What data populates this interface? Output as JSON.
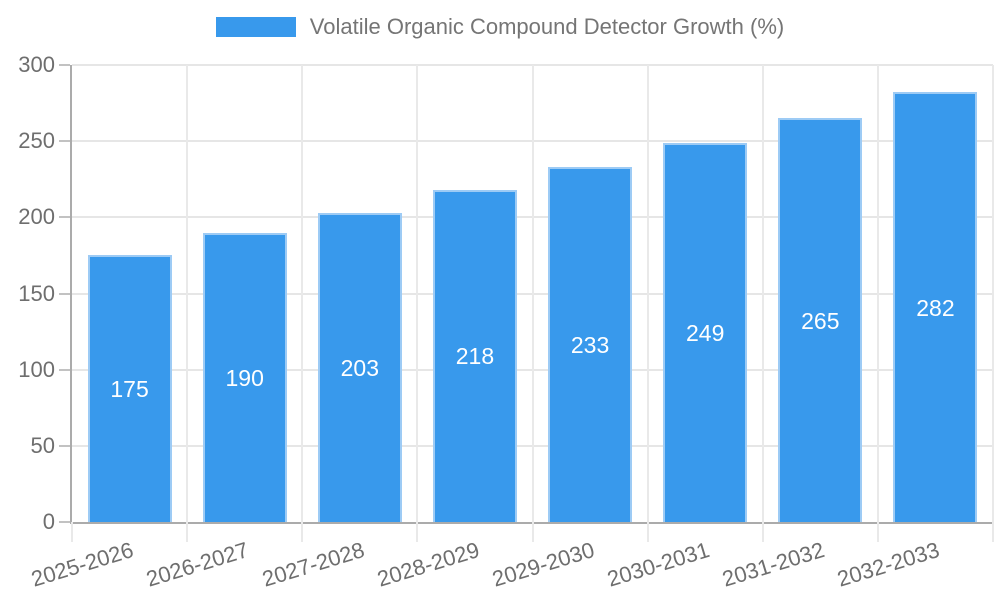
{
  "chart_data": {
    "type": "bar",
    "title": "Volatile Organic Compound Detector Growth (%)",
    "categories": [
      "2025-2026",
      "2026-2027",
      "2027-2028",
      "2028-2029",
      "2029-2030",
      "2030-2031",
      "2031-2032",
      "2032-2033"
    ],
    "values": [
      175,
      190,
      203,
      218,
      233,
      249,
      265,
      282
    ],
    "xlabel": "",
    "ylabel": "",
    "ylim": [
      0,
      300
    ],
    "yticks": [
      0,
      50,
      100,
      150,
      200,
      250,
      300
    ],
    "grid": true,
    "legend_position": "top-center",
    "value_labels": "inside-center"
  },
  "legend": {
    "label": "Volatile Organic Compound Detector Growth (%)"
  },
  "colors": {
    "background": "#ffffff",
    "bar_fill": "#3899ec",
    "bar_edge": "#9dcbf5",
    "value_label": "#ffffff",
    "axis": "#ababab",
    "gridline": "#e6e6e6",
    "gridline_vertical": "#e9e9e9",
    "tick": "#c2c2c2",
    "text": "#6e6e6e",
    "legend_text": "#757575"
  }
}
